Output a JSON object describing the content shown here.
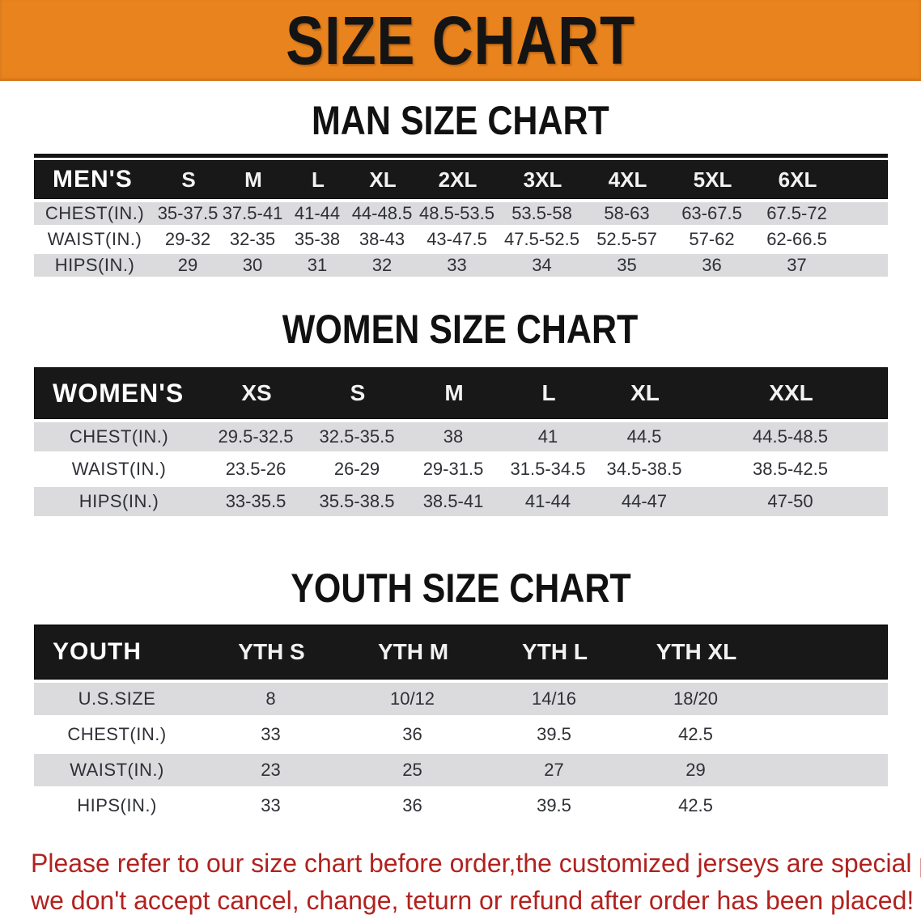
{
  "banner": {
    "title": "SIZE CHART"
  },
  "colors": {
    "banner_bg": "#E8831E",
    "header_bar": "#181818",
    "row_shade": "#DBDBDD",
    "notice_text": "#B1221F",
    "data_text": "#2E3036"
  },
  "tables": {
    "men": {
      "heading": "MAN SIZE CHART",
      "header_label": "MEN'S",
      "sizes": [
        "S",
        "M",
        "L",
        "XL",
        "2XL",
        "3XL",
        "4XL",
        "5XL",
        "6XL"
      ],
      "rows": [
        {
          "label": "CHEST(IN.)",
          "values": [
            "35-37.5",
            "37.5-41",
            "41-44",
            "44-48.5",
            "48.5-53.5",
            "53.5-58",
            "58-63",
            "63-67.5",
            "67.5-72"
          ]
        },
        {
          "label": "WAIST(IN.)",
          "values": [
            "29-32",
            "32-35",
            "35-38",
            "38-43",
            "43-47.5",
            "47.5-52.5",
            "52.5-57",
            "57-62",
            "62-66.5"
          ]
        },
        {
          "label": "HIPS(IN.)",
          "values": [
            "29",
            "30",
            "31",
            "32",
            "33",
            "34",
            "35",
            "36",
            "37"
          ]
        }
      ]
    },
    "women": {
      "heading": "WOMEN SIZE CHART",
      "header_label": "WOMEN'S",
      "sizes": [
        "XS",
        "S",
        "M",
        "L",
        "XL",
        "XXL"
      ],
      "rows": [
        {
          "label": "CHEST(IN.)",
          "values": [
            "29.5-32.5",
            "32.5-35.5",
            "38",
            "41",
            "44.5",
            "44.5-48.5"
          ]
        },
        {
          "label": "WAIST(IN.)",
          "values": [
            "23.5-26",
            "26-29",
            "29-31.5",
            "31.5-34.5",
            "34.5-38.5",
            "38.5-42.5"
          ]
        },
        {
          "label": "HIPS(IN.)",
          "values": [
            "33-35.5",
            "35.5-38.5",
            "38.5-41",
            "41-44",
            "44-47",
            "47-50"
          ]
        }
      ]
    },
    "youth": {
      "heading": "YOUTH SIZE CHART",
      "header_label": "YOUTH",
      "sizes": [
        "YTH S",
        "YTH M",
        "YTH L",
        "YTH XL"
      ],
      "rows": [
        {
          "label": "U.S.SIZE",
          "values": [
            "8",
            "10/12",
            "14/16",
            "18/20"
          ]
        },
        {
          "label": "CHEST(IN.)",
          "values": [
            "33",
            "36",
            "39.5",
            "42.5"
          ]
        },
        {
          "label": "WAIST(IN.)",
          "values": [
            "23",
            "25",
            "27",
            "29"
          ]
        },
        {
          "label": "HIPS(IN.)",
          "values": [
            "33",
            "36",
            "39.5",
            "42.5"
          ]
        }
      ]
    }
  },
  "notice": {
    "line1": "Please refer to our size chart before order,the customized jerseys are special products,",
    "line2": "we don't accept cancel, change, teturn or refund after order has been placed!"
  }
}
